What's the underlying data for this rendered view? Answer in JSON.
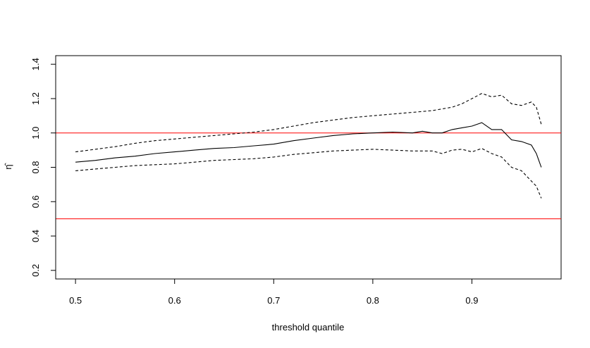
{
  "chart_data": {
    "type": "line",
    "title": "",
    "xlabel": "threshold quantile",
    "ylabel": "η̂",
    "xlim": [
      0.48,
      0.99
    ],
    "ylim": [
      0.15,
      1.45
    ],
    "xticks": [
      0.5,
      0.6,
      0.7,
      0.8,
      0.9
    ],
    "yticks": [
      0.2,
      0.4,
      0.6,
      0.8,
      1.0,
      1.2,
      1.4
    ],
    "xtick_labels": [
      "0.5",
      "0.6",
      "0.7",
      "0.8",
      "0.9"
    ],
    "ytick_labels": [
      "0.2",
      "0.4",
      "0.6",
      "0.8",
      "1.0",
      "1.2",
      "1.4"
    ],
    "grid": false,
    "reference_lines": [
      {
        "y": 1.0,
        "color": "#ff0000"
      },
      {
        "y": 0.5,
        "color": "#ff0000"
      }
    ],
    "series": [
      {
        "style": "solid",
        "color": "#000000",
        "x": [
          0.5,
          0.52,
          0.54,
          0.56,
          0.58,
          0.6,
          0.62,
          0.64,
          0.66,
          0.68,
          0.7,
          0.72,
          0.74,
          0.76,
          0.78,
          0.8,
          0.82,
          0.84,
          0.85,
          0.86,
          0.87,
          0.88,
          0.89,
          0.9,
          0.91,
          0.92,
          0.93,
          0.94,
          0.95,
          0.96,
          0.965,
          0.97
        ],
        "y": [
          0.83,
          0.84,
          0.855,
          0.865,
          0.88,
          0.89,
          0.9,
          0.91,
          0.915,
          0.925,
          0.935,
          0.955,
          0.97,
          0.985,
          0.995,
          1.0,
          1.005,
          1.0,
          1.01,
          1.0,
          1.0,
          1.02,
          1.03,
          1.04,
          1.06,
          1.02,
          1.02,
          0.96,
          0.95,
          0.93,
          0.88,
          0.8
        ]
      },
      {
        "style": "dashed",
        "color": "#000000",
        "x": [
          0.5,
          0.52,
          0.54,
          0.56,
          0.58,
          0.6,
          0.62,
          0.64,
          0.66,
          0.68,
          0.7,
          0.72,
          0.74,
          0.76,
          0.78,
          0.8,
          0.82,
          0.84,
          0.86,
          0.87,
          0.88,
          0.89,
          0.9,
          0.91,
          0.92,
          0.93,
          0.94,
          0.95,
          0.96,
          0.965,
          0.97
        ],
        "y": [
          0.89,
          0.905,
          0.92,
          0.94,
          0.955,
          0.965,
          0.975,
          0.985,
          0.995,
          1.005,
          1.02,
          1.04,
          1.06,
          1.075,
          1.09,
          1.1,
          1.11,
          1.12,
          1.13,
          1.14,
          1.15,
          1.17,
          1.2,
          1.23,
          1.21,
          1.22,
          1.17,
          1.16,
          1.18,
          1.15,
          1.05
        ]
      },
      {
        "style": "dashed",
        "color": "#000000",
        "x": [
          0.5,
          0.52,
          0.54,
          0.56,
          0.58,
          0.6,
          0.62,
          0.64,
          0.66,
          0.68,
          0.7,
          0.72,
          0.74,
          0.76,
          0.78,
          0.8,
          0.82,
          0.84,
          0.86,
          0.87,
          0.88,
          0.89,
          0.9,
          0.91,
          0.92,
          0.93,
          0.94,
          0.95,
          0.96,
          0.965,
          0.97
        ],
        "y": [
          0.78,
          0.79,
          0.8,
          0.81,
          0.815,
          0.82,
          0.83,
          0.84,
          0.845,
          0.85,
          0.86,
          0.875,
          0.885,
          0.895,
          0.9,
          0.905,
          0.9,
          0.895,
          0.895,
          0.88,
          0.9,
          0.905,
          0.89,
          0.91,
          0.88,
          0.86,
          0.8,
          0.78,
          0.72,
          0.69,
          0.62
        ]
      }
    ]
  }
}
